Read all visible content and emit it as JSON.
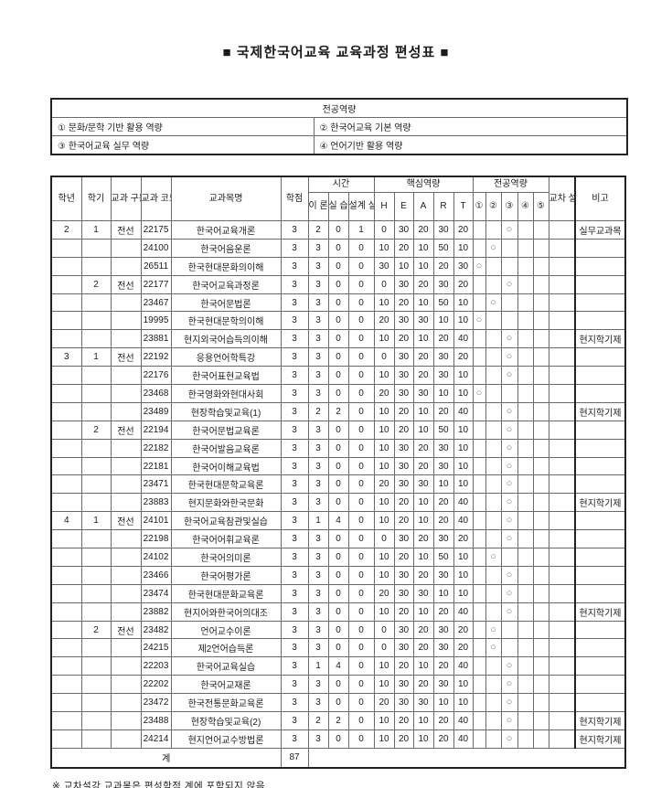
{
  "title": "■ 국제한국어교육 교육과정 편성표 ■",
  "competency_table": {
    "header": "전공역량",
    "items": [
      {
        "label": "① 문화/문학 기반 활용 역량"
      },
      {
        "label": "② 한국어교육 기본 역량"
      },
      {
        "label": "③ 한국어교육 실무 역량"
      },
      {
        "label": "④ 언어기반 활용 역량"
      }
    ]
  },
  "curriculum_table": {
    "circle_mark": "○",
    "headers": {
      "year": "학년",
      "semester": "학기",
      "course_type": "교과\n구분",
      "course_code": "교과\n코드",
      "course_name": "교과목명",
      "credits": "학점",
      "time_group": "시간",
      "theory": "이\n론",
      "practice": "실\n습",
      "design": "설계\n실무",
      "core_group": "핵심역량",
      "core_cols": [
        "H",
        "E",
        "A",
        "R",
        "T"
      ],
      "major_group": "전공역량",
      "major_cols": [
        "①",
        "②",
        "③",
        "④",
        "⑤"
      ],
      "cross_listing": "교차\n설강",
      "note": "비고"
    },
    "rows": [
      {
        "y": "2",
        "s": "1",
        "t": "전선",
        "code": "22175",
        "name": "한국어교육개론",
        "cr": "3",
        "th": "2",
        "pr": "0",
        "de": "1",
        "H": "0",
        "E": "30",
        "A": "20",
        "R": "30",
        "T": "20",
        "comp": 3,
        "cross": "",
        "note": "실무교과목"
      },
      {
        "y": "",
        "s": "",
        "t": "",
        "code": "24100",
        "name": "한국어음운론",
        "cr": "3",
        "th": "3",
        "pr": "0",
        "de": "0",
        "H": "10",
        "E": "20",
        "A": "10",
        "R": "50",
        "T": "10",
        "comp": 2,
        "cross": "",
        "note": ""
      },
      {
        "y": "",
        "s": "",
        "t": "",
        "code": "26511",
        "name": "한국현대문화의이해",
        "cr": "3",
        "th": "3",
        "pr": "0",
        "de": "0",
        "H": "30",
        "E": "10",
        "A": "10",
        "R": "20",
        "T": "30",
        "comp": 1,
        "cross": "",
        "note": ""
      },
      {
        "y": "",
        "s": "2",
        "t": "전선",
        "code": "22177",
        "name": "한국어교육과정론",
        "cr": "3",
        "th": "3",
        "pr": "0",
        "de": "0",
        "H": "0",
        "E": "30",
        "A": "20",
        "R": "30",
        "T": "20",
        "comp": 3,
        "cross": "",
        "note": ""
      },
      {
        "y": "",
        "s": "",
        "t": "",
        "code": "23467",
        "name": "한국어문법론",
        "cr": "3",
        "th": "3",
        "pr": "0",
        "de": "0",
        "H": "10",
        "E": "20",
        "A": "10",
        "R": "50",
        "T": "10",
        "comp": 2,
        "cross": "",
        "note": ""
      },
      {
        "y": "",
        "s": "",
        "t": "",
        "code": "19995",
        "name": "한국현대문학의이해",
        "cr": "3",
        "th": "3",
        "pr": "0",
        "de": "0",
        "H": "20",
        "E": "30",
        "A": "30",
        "R": "10",
        "T": "10",
        "comp": 1,
        "cross": "",
        "note": ""
      },
      {
        "y": "",
        "s": "",
        "t": "",
        "code": "23881",
        "name": "현지외국어습득의이해",
        "cr": "3",
        "th": "3",
        "pr": "0",
        "de": "0",
        "H": "10",
        "E": "20",
        "A": "10",
        "R": "20",
        "T": "40",
        "comp": 3,
        "cross": "",
        "note": "현지학기제"
      },
      {
        "y": "3",
        "s": "1",
        "t": "전선",
        "code": "22192",
        "name": "응용언어학특강",
        "cr": "3",
        "th": "3",
        "pr": "0",
        "de": "0",
        "H": "0",
        "E": "30",
        "A": "20",
        "R": "30",
        "T": "20",
        "comp": 3,
        "cross": "",
        "note": ""
      },
      {
        "y": "",
        "s": "",
        "t": "",
        "code": "22176",
        "name": "한국어표현교육법",
        "cr": "3",
        "th": "3",
        "pr": "0",
        "de": "0",
        "H": "10",
        "E": "30",
        "A": "20",
        "R": "30",
        "T": "10",
        "comp": 3,
        "cross": "",
        "note": ""
      },
      {
        "y": "",
        "s": "",
        "t": "",
        "code": "23468",
        "name": "한국영화와현대사회",
        "cr": "3",
        "th": "3",
        "pr": "0",
        "de": "0",
        "H": "20",
        "E": "30",
        "A": "30",
        "R": "10",
        "T": "10",
        "comp": 1,
        "cross": "",
        "note": ""
      },
      {
        "y": "",
        "s": "",
        "t": "",
        "code": "23489",
        "name": "현장학습및교육(1)",
        "cr": "3",
        "th": "2",
        "pr": "2",
        "de": "0",
        "H": "10",
        "E": "20",
        "A": "10",
        "R": "20",
        "T": "40",
        "comp": 3,
        "cross": "",
        "note": "현지학기제"
      },
      {
        "y": "",
        "s": "2",
        "t": "전선",
        "code": "22194",
        "name": "한국어문법교육론",
        "cr": "3",
        "th": "3",
        "pr": "0",
        "de": "0",
        "H": "10",
        "E": "20",
        "A": "10",
        "R": "50",
        "T": "10",
        "comp": 3,
        "cross": "",
        "note": ""
      },
      {
        "y": "",
        "s": "",
        "t": "",
        "code": "22182",
        "name": "한국어발음교육론",
        "cr": "3",
        "th": "3",
        "pr": "0",
        "de": "0",
        "H": "10",
        "E": "30",
        "A": "20",
        "R": "30",
        "T": "10",
        "comp": 3,
        "cross": "",
        "note": ""
      },
      {
        "y": "",
        "s": "",
        "t": "",
        "code": "22181",
        "name": "한국어이해교육법",
        "cr": "3",
        "th": "3",
        "pr": "0",
        "de": "0",
        "H": "10",
        "E": "30",
        "A": "20",
        "R": "30",
        "T": "10",
        "comp": 3,
        "cross": "",
        "note": ""
      },
      {
        "y": "",
        "s": "",
        "t": "",
        "code": "23471",
        "name": "한국현대문학교육론",
        "cr": "3",
        "th": "3",
        "pr": "0",
        "de": "0",
        "H": "20",
        "E": "30",
        "A": "30",
        "R": "10",
        "T": "10",
        "comp": 3,
        "cross": "",
        "note": ""
      },
      {
        "y": "",
        "s": "",
        "t": "",
        "code": "23883",
        "name": "현지문화와한국문화",
        "cr": "3",
        "th": "3",
        "pr": "0",
        "de": "0",
        "H": "10",
        "E": "20",
        "A": "10",
        "R": "20",
        "T": "40",
        "comp": 3,
        "cross": "",
        "note": "현지학기제"
      },
      {
        "y": "4",
        "s": "1",
        "t": "전선",
        "code": "24101",
        "name": "한국어교육참관및실습",
        "cr": "3",
        "th": "1",
        "pr": "4",
        "de": "0",
        "H": "10",
        "E": "20",
        "A": "10",
        "R": "20",
        "T": "40",
        "comp": 3,
        "cross": "",
        "note": ""
      },
      {
        "y": "",
        "s": "",
        "t": "",
        "code": "22198",
        "name": "한국어어휘교육론",
        "cr": "3",
        "th": "3",
        "pr": "0",
        "de": "0",
        "H": "0",
        "E": "30",
        "A": "20",
        "R": "30",
        "T": "20",
        "comp": 3,
        "cross": "",
        "note": ""
      },
      {
        "y": "",
        "s": "",
        "t": "",
        "code": "24102",
        "name": "한국어의미론",
        "cr": "3",
        "th": "3",
        "pr": "0",
        "de": "0",
        "H": "10",
        "E": "20",
        "A": "10",
        "R": "50",
        "T": "10",
        "comp": 2,
        "cross": "",
        "note": ""
      },
      {
        "y": "",
        "s": "",
        "t": "",
        "code": "23466",
        "name": "한국어평가론",
        "cr": "3",
        "th": "3",
        "pr": "0",
        "de": "0",
        "H": "10",
        "E": "30",
        "A": "20",
        "R": "30",
        "T": "10",
        "comp": 3,
        "cross": "",
        "note": ""
      },
      {
        "y": "",
        "s": "",
        "t": "",
        "code": "23474",
        "name": "한국현대문화교육론",
        "cr": "3",
        "th": "3",
        "pr": "0",
        "de": "0",
        "H": "20",
        "E": "30",
        "A": "30",
        "R": "10",
        "T": "10",
        "comp": 3,
        "cross": "",
        "note": ""
      },
      {
        "y": "",
        "s": "",
        "t": "",
        "code": "23882",
        "name": "현지어와한국어의대조",
        "cr": "3",
        "th": "3",
        "pr": "0",
        "de": "0",
        "H": "10",
        "E": "20",
        "A": "10",
        "R": "20",
        "T": "40",
        "comp": 3,
        "cross": "",
        "note": "현지학기제"
      },
      {
        "y": "",
        "s": "2",
        "t": "전선",
        "code": "23482",
        "name": "언어교수이론",
        "cr": "3",
        "th": "3",
        "pr": "0",
        "de": "0",
        "H": "0",
        "E": "30",
        "A": "20",
        "R": "30",
        "T": "20",
        "comp": 2,
        "cross": "",
        "note": ""
      },
      {
        "y": "",
        "s": "",
        "t": "",
        "code": "24215",
        "name": "제2언어습득론",
        "cr": "3",
        "th": "3",
        "pr": "0",
        "de": "0",
        "H": "0",
        "E": "30",
        "A": "20",
        "R": "30",
        "T": "20",
        "comp": 2,
        "cross": "",
        "note": ""
      },
      {
        "y": "",
        "s": "",
        "t": "",
        "code": "22203",
        "name": "한국어교육실습",
        "cr": "3",
        "th": "1",
        "pr": "4",
        "de": "0",
        "H": "10",
        "E": "20",
        "A": "10",
        "R": "20",
        "T": "40",
        "comp": 3,
        "cross": "",
        "note": ""
      },
      {
        "y": "",
        "s": "",
        "t": "",
        "code": "22202",
        "name": "한국어교재론",
        "cr": "3",
        "th": "3",
        "pr": "0",
        "de": "0",
        "H": "10",
        "E": "30",
        "A": "20",
        "R": "30",
        "T": "10",
        "comp": 3,
        "cross": "",
        "note": ""
      },
      {
        "y": "",
        "s": "",
        "t": "",
        "code": "23472",
        "name": "한국전통문화교육론",
        "cr": "3",
        "th": "3",
        "pr": "0",
        "de": "0",
        "H": "20",
        "E": "30",
        "A": "30",
        "R": "10",
        "T": "10",
        "comp": 3,
        "cross": "",
        "note": ""
      },
      {
        "y": "",
        "s": "",
        "t": "",
        "code": "23488",
        "name": "현장학습및교육(2)",
        "cr": "3",
        "th": "2",
        "pr": "2",
        "de": "0",
        "H": "10",
        "E": "20",
        "A": "10",
        "R": "20",
        "T": "40",
        "comp": 3,
        "cross": "",
        "note": "현지학기제"
      },
      {
        "y": "",
        "s": "",
        "t": "",
        "code": "24214",
        "name": "현지언어교수방법론",
        "cr": "3",
        "th": "3",
        "pr": "0",
        "de": "0",
        "H": "10",
        "E": "20",
        "A": "10",
        "R": "20",
        "T": "40",
        "comp": 3,
        "cross": "",
        "note": "현지학기제"
      }
    ],
    "total": {
      "label": "계",
      "credits": "87"
    }
  },
  "footnote": "※ 교차설강 교과목은 편성학점 계에 포함되지 않음"
}
